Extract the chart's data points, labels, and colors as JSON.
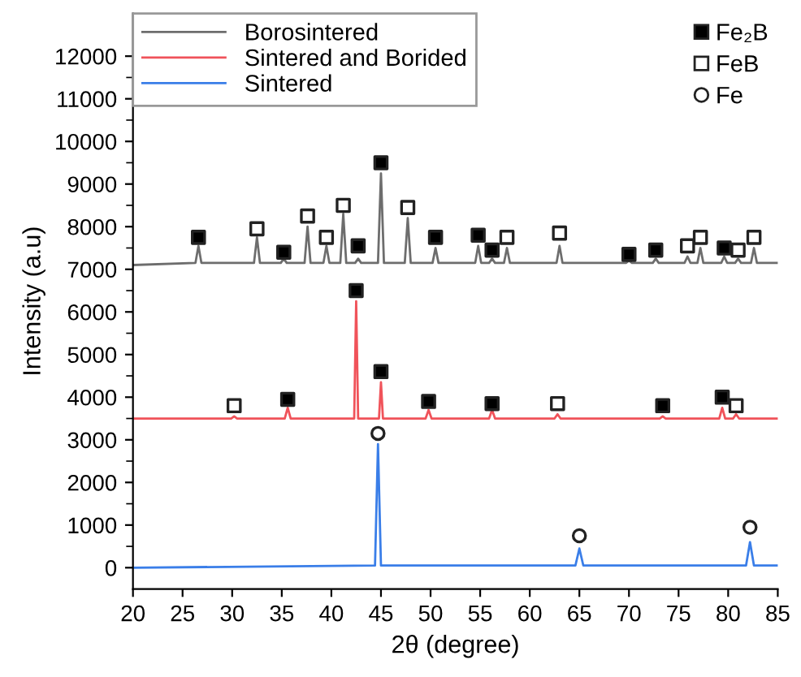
{
  "chart_data": {
    "type": "line",
    "xlabel": "2θ (degree)",
    "ylabel": "Intensity (a.u)",
    "xlim": [
      20,
      85
    ],
    "xticks": [
      20,
      25,
      30,
      35,
      40,
      45,
      50,
      55,
      60,
      65,
      70,
      75,
      80,
      85
    ],
    "ylim": [
      -500,
      13000
    ],
    "yticks": [
      0,
      1000,
      2000,
      3000,
      4000,
      5000,
      6000,
      7000,
      8000,
      9000,
      10000,
      11000,
      12000
    ],
    "legend": "top left",
    "grid": false,
    "line_style": "solid",
    "series": [
      {
        "name": "Borosintered",
        "color": "#6d6d6d",
        "x": [
          20,
          26.3,
          26.6,
          26.9,
          32.2,
          32.5,
          32.8,
          34.9,
          35.2,
          35.5,
          37.3,
          37.6,
          37.9,
          39.2,
          39.5,
          39.8,
          40.9,
          41.2,
          41.5,
          42.4,
          42.7,
          43.0,
          44.7,
          45.0,
          45.3,
          47.4,
          47.7,
          48.0,
          50.2,
          50.5,
          50.8,
          54.5,
          54.8,
          55.1,
          55.9,
          56.2,
          56.5,
          57.4,
          57.7,
          58.0,
          62.7,
          63.0,
          63.3,
          69.7,
          70.0,
          70.3,
          72.4,
          72.7,
          73.0,
          75.6,
          75.9,
          76.2,
          76.9,
          77.2,
          77.5,
          79.3,
          79.6,
          79.9,
          80.7,
          81.0,
          81.3,
          82.3,
          82.6,
          82.9,
          85
        ],
        "values": [
          7100,
          7150,
          7550,
          7150,
          7150,
          7750,
          7150,
          7150,
          7250,
          7150,
          7150,
          8000,
          7150,
          7150,
          7550,
          7150,
          7150,
          8300,
          7150,
          7150,
          7250,
          7150,
          7150,
          9250,
          7150,
          7150,
          8200,
          7150,
          7150,
          7500,
          7150,
          7150,
          7550,
          7150,
          7150,
          7250,
          7150,
          7150,
          7500,
          7150,
          7150,
          7550,
          7150,
          7150,
          7200,
          7150,
          7150,
          7250,
          7150,
          7150,
          7300,
          7150,
          7150,
          7500,
          7150,
          7150,
          7300,
          7150,
          7150,
          7250,
          7150,
          7150,
          7500,
          7150,
          7150
        ]
      },
      {
        "name": "Sintered and Borided",
        "color": "#f0535a",
        "x": [
          20,
          29.9,
          30.2,
          30.5,
          35.3,
          35.6,
          35.9,
          42.3,
          42.5,
          42.7,
          44.8,
          45.0,
          45.2,
          49.5,
          49.8,
          50.1,
          55.9,
          56.2,
          56.5,
          62.5,
          62.8,
          63.1,
          73.1,
          73.4,
          73.7,
          79.1,
          79.4,
          79.7,
          80.5,
          80.8,
          81.1,
          85
        ],
        "values": [
          3500,
          3500,
          3550,
          3500,
          3500,
          3750,
          3500,
          3500,
          6250,
          3500,
          3500,
          4350,
          3500,
          3500,
          3700,
          3500,
          3500,
          3700,
          3500,
          3500,
          3600,
          3500,
          3500,
          3550,
          3500,
          3500,
          3750,
          3500,
          3500,
          3600,
          3500,
          3500
        ]
      },
      {
        "name": "Sintered",
        "color": "#3a7ee8",
        "x": [
          20,
          44.4,
          44.7,
          45.0,
          64.6,
          65.0,
          65.4,
          81.8,
          82.2,
          82.6,
          85
        ],
        "values": [
          0,
          50,
          2900,
          50,
          50,
          450,
          50,
          50,
          600,
          50,
          50
        ]
      },
      {
        "name": "Fe₂B",
        "type": "scatter",
        "marker": "square",
        "color": "#000000",
        "x": [
          26.6,
          35.2,
          42.7,
          45.0,
          50.5,
          54.8,
          56.2,
          70.0,
          72.7,
          79.6,
          35.6,
          42.5,
          45.0,
          49.8,
          56.2,
          73.4,
          79.4
        ],
        "values": [
          7750,
          7400,
          7550,
          9500,
          7750,
          7800,
          7450,
          7350,
          7450,
          7500,
          3950,
          6500,
          4600,
          3900,
          3850,
          3800,
          4000
        ]
      },
      {
        "name": "FeB",
        "type": "scatter",
        "marker": "square",
        "color": "#ffffff",
        "x": [
          32.5,
          37.6,
          39.5,
          41.2,
          47.7,
          57.7,
          63.0,
          75.9,
          77.2,
          81.0,
          82.6,
          30.2,
          62.8,
          80.8
        ],
        "values": [
          7950,
          8250,
          7750,
          8500,
          8450,
          7750,
          7850,
          7550,
          7750,
          7450,
          7750,
          3800,
          3850,
          3800
        ]
      },
      {
        "name": "Fe",
        "type": "scatter",
        "marker": "circle",
        "color": "#ffffff",
        "x": [
          44.7,
          65.0,
          82.2
        ],
        "values": [
          3150,
          750,
          950
        ]
      }
    ]
  }
}
